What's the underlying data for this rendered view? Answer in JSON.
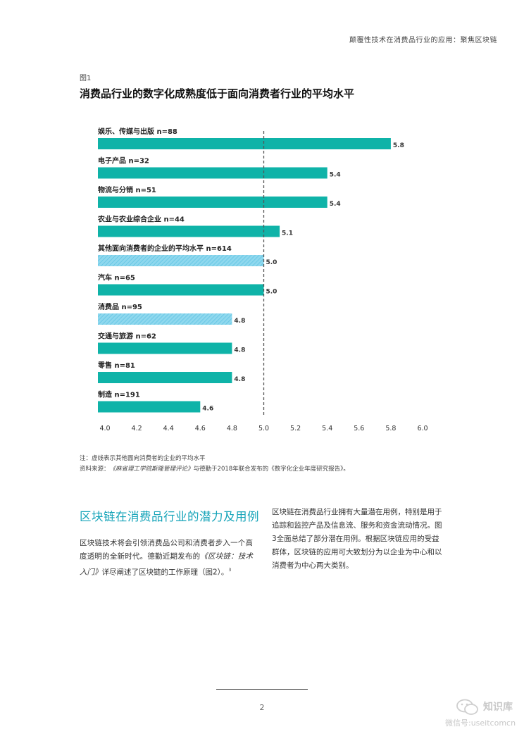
{
  "header": {
    "running_title": "颠覆性技术在消费品行业的应用：聚焦区块链"
  },
  "figure": {
    "label": "图1",
    "title": "消费品行业的数字化成熟度低于面向消费者行业的平均水平"
  },
  "colors": {
    "bar": "#0fb3a8",
    "bar_hatched": "#8fd8ee",
    "heading_accent": "#13a3b8",
    "reference_line": "#555555"
  },
  "chart_data": {
    "type": "bar",
    "orientation": "horizontal",
    "categories": [
      "娱乐、传媒与出版 n=88",
      "电子产品 n=32",
      "物流与分销 n=51",
      "农业与农业综合企业 n=44",
      "其他面向消费者的企业的平均水平 n=614",
      "汽车 n=65",
      "消费品 n=95",
      "交通与旅游 n=62",
      "零售 n=81",
      "制造 n=191"
    ],
    "values": [
      5.8,
      5.4,
      5.4,
      5.1,
      5.0,
      5.0,
      4.8,
      4.8,
      4.8,
      4.6
    ],
    "value_labels": [
      "5.8",
      "5.4",
      "5.4",
      "5.1",
      "5.0",
      "5.0",
      "4.8",
      "4.8",
      "4.8",
      "4.6"
    ],
    "highlighted": [
      false,
      false,
      false,
      false,
      true,
      false,
      true,
      false,
      false,
      false
    ],
    "x_ticks": [
      "4.0",
      "4.2",
      "4.4",
      "4.6",
      "4.8",
      "5.0",
      "5.2",
      "5.4",
      "5.6",
      "5.8",
      "6.0"
    ],
    "xlim": [
      4.0,
      6.0
    ],
    "reference_value": 5.0,
    "grid": false
  },
  "notes": {
    "note": "注：虚线表示其他面向消费者的企业的平均水平",
    "source_prefix": "资料来源：",
    "source_journal": "《麻省理工学院斯隆管理评论》",
    "source_rest": "与德勤于2018年联合发布的《数字化企业年度研究报告》。"
  },
  "section": {
    "heading": "区块链在消费品行业的潜力及用例",
    "left_p1": "区块链技术将会引领消费品公司和消费者步入一个高度透明的全新时代。德勤近期发布的",
    "left_italic": "《区块链：技术入门》",
    "left_p2": "详尽阐述了区块链的工作原理（图2）。",
    "left_sup": "3",
    "right_text": "区块链在消费品行业拥有大量潜在用例，特别是用于追踪和监控产品及信息流、服务和资金流动情况。图3全面总结了部分潜在用例。根据区块链应用的受益群体，区块链的应用可大致划分为以企业为中心和以消费者为中心两大类别。"
  },
  "footer": {
    "page_number": "2"
  },
  "watermark": {
    "name": "知识库",
    "sub": "微信号:useitcomcn",
    "icon": "wechat-icon"
  }
}
